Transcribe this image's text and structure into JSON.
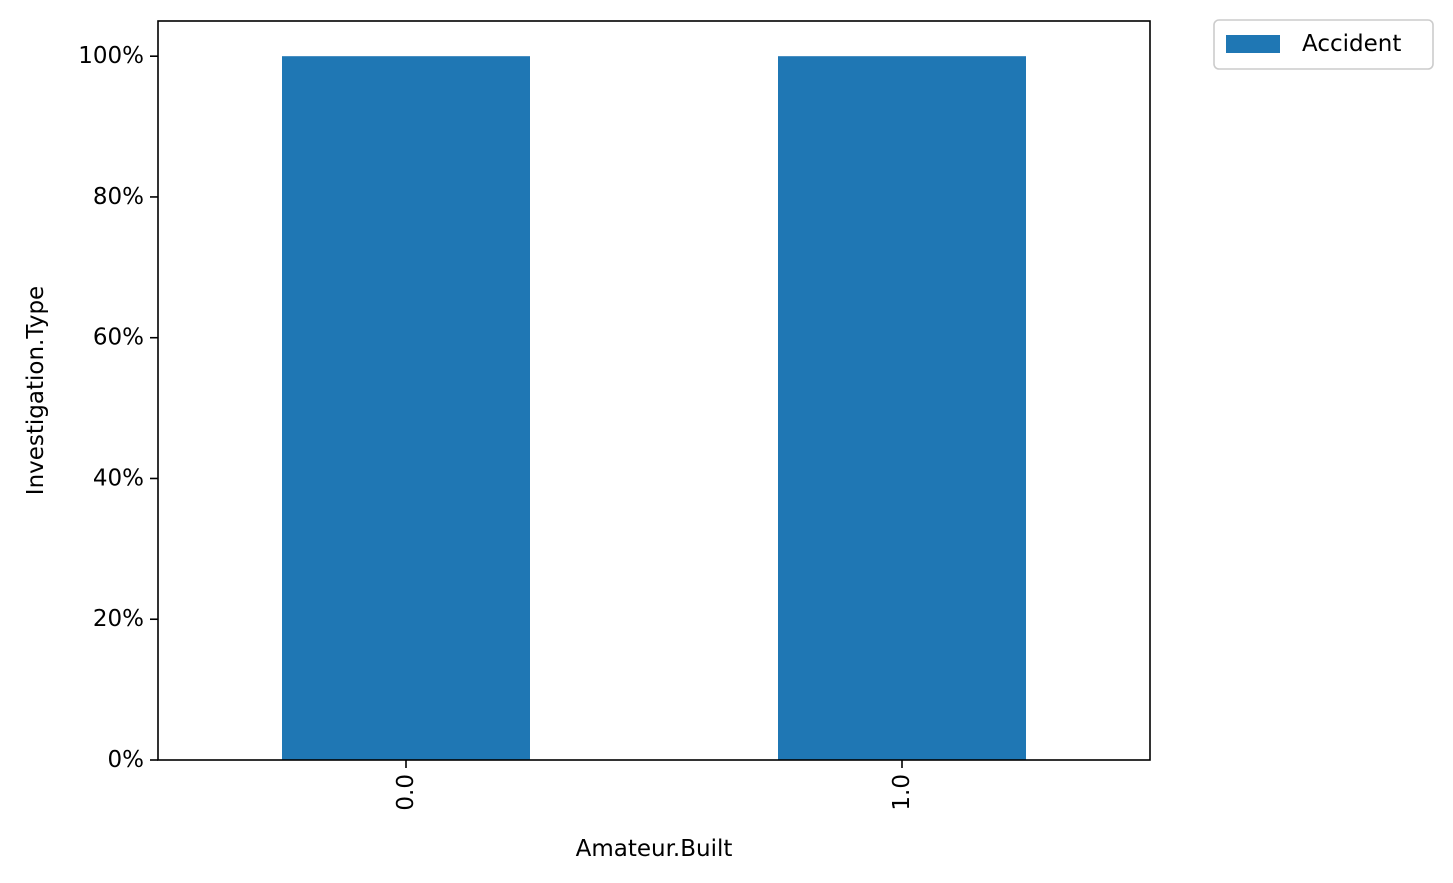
{
  "chart_data": {
    "type": "bar",
    "categories": [
      "0.0",
      "1.0"
    ],
    "series": [
      {
        "name": "Accident",
        "values": [
          100,
          100
        ],
        "color": "#1f77b4"
      }
    ],
    "xlabel": "Amateur.Built",
    "ylabel": "Investigation.Type",
    "ylim": [
      0,
      105
    ],
    "yticks": [
      0,
      20,
      40,
      60,
      80,
      100
    ],
    "ytick_labels": [
      "0%",
      "20%",
      "40%",
      "60%",
      "80%",
      "100%"
    ],
    "grid": false,
    "legend": {
      "placement": "outside-top-right"
    }
  }
}
